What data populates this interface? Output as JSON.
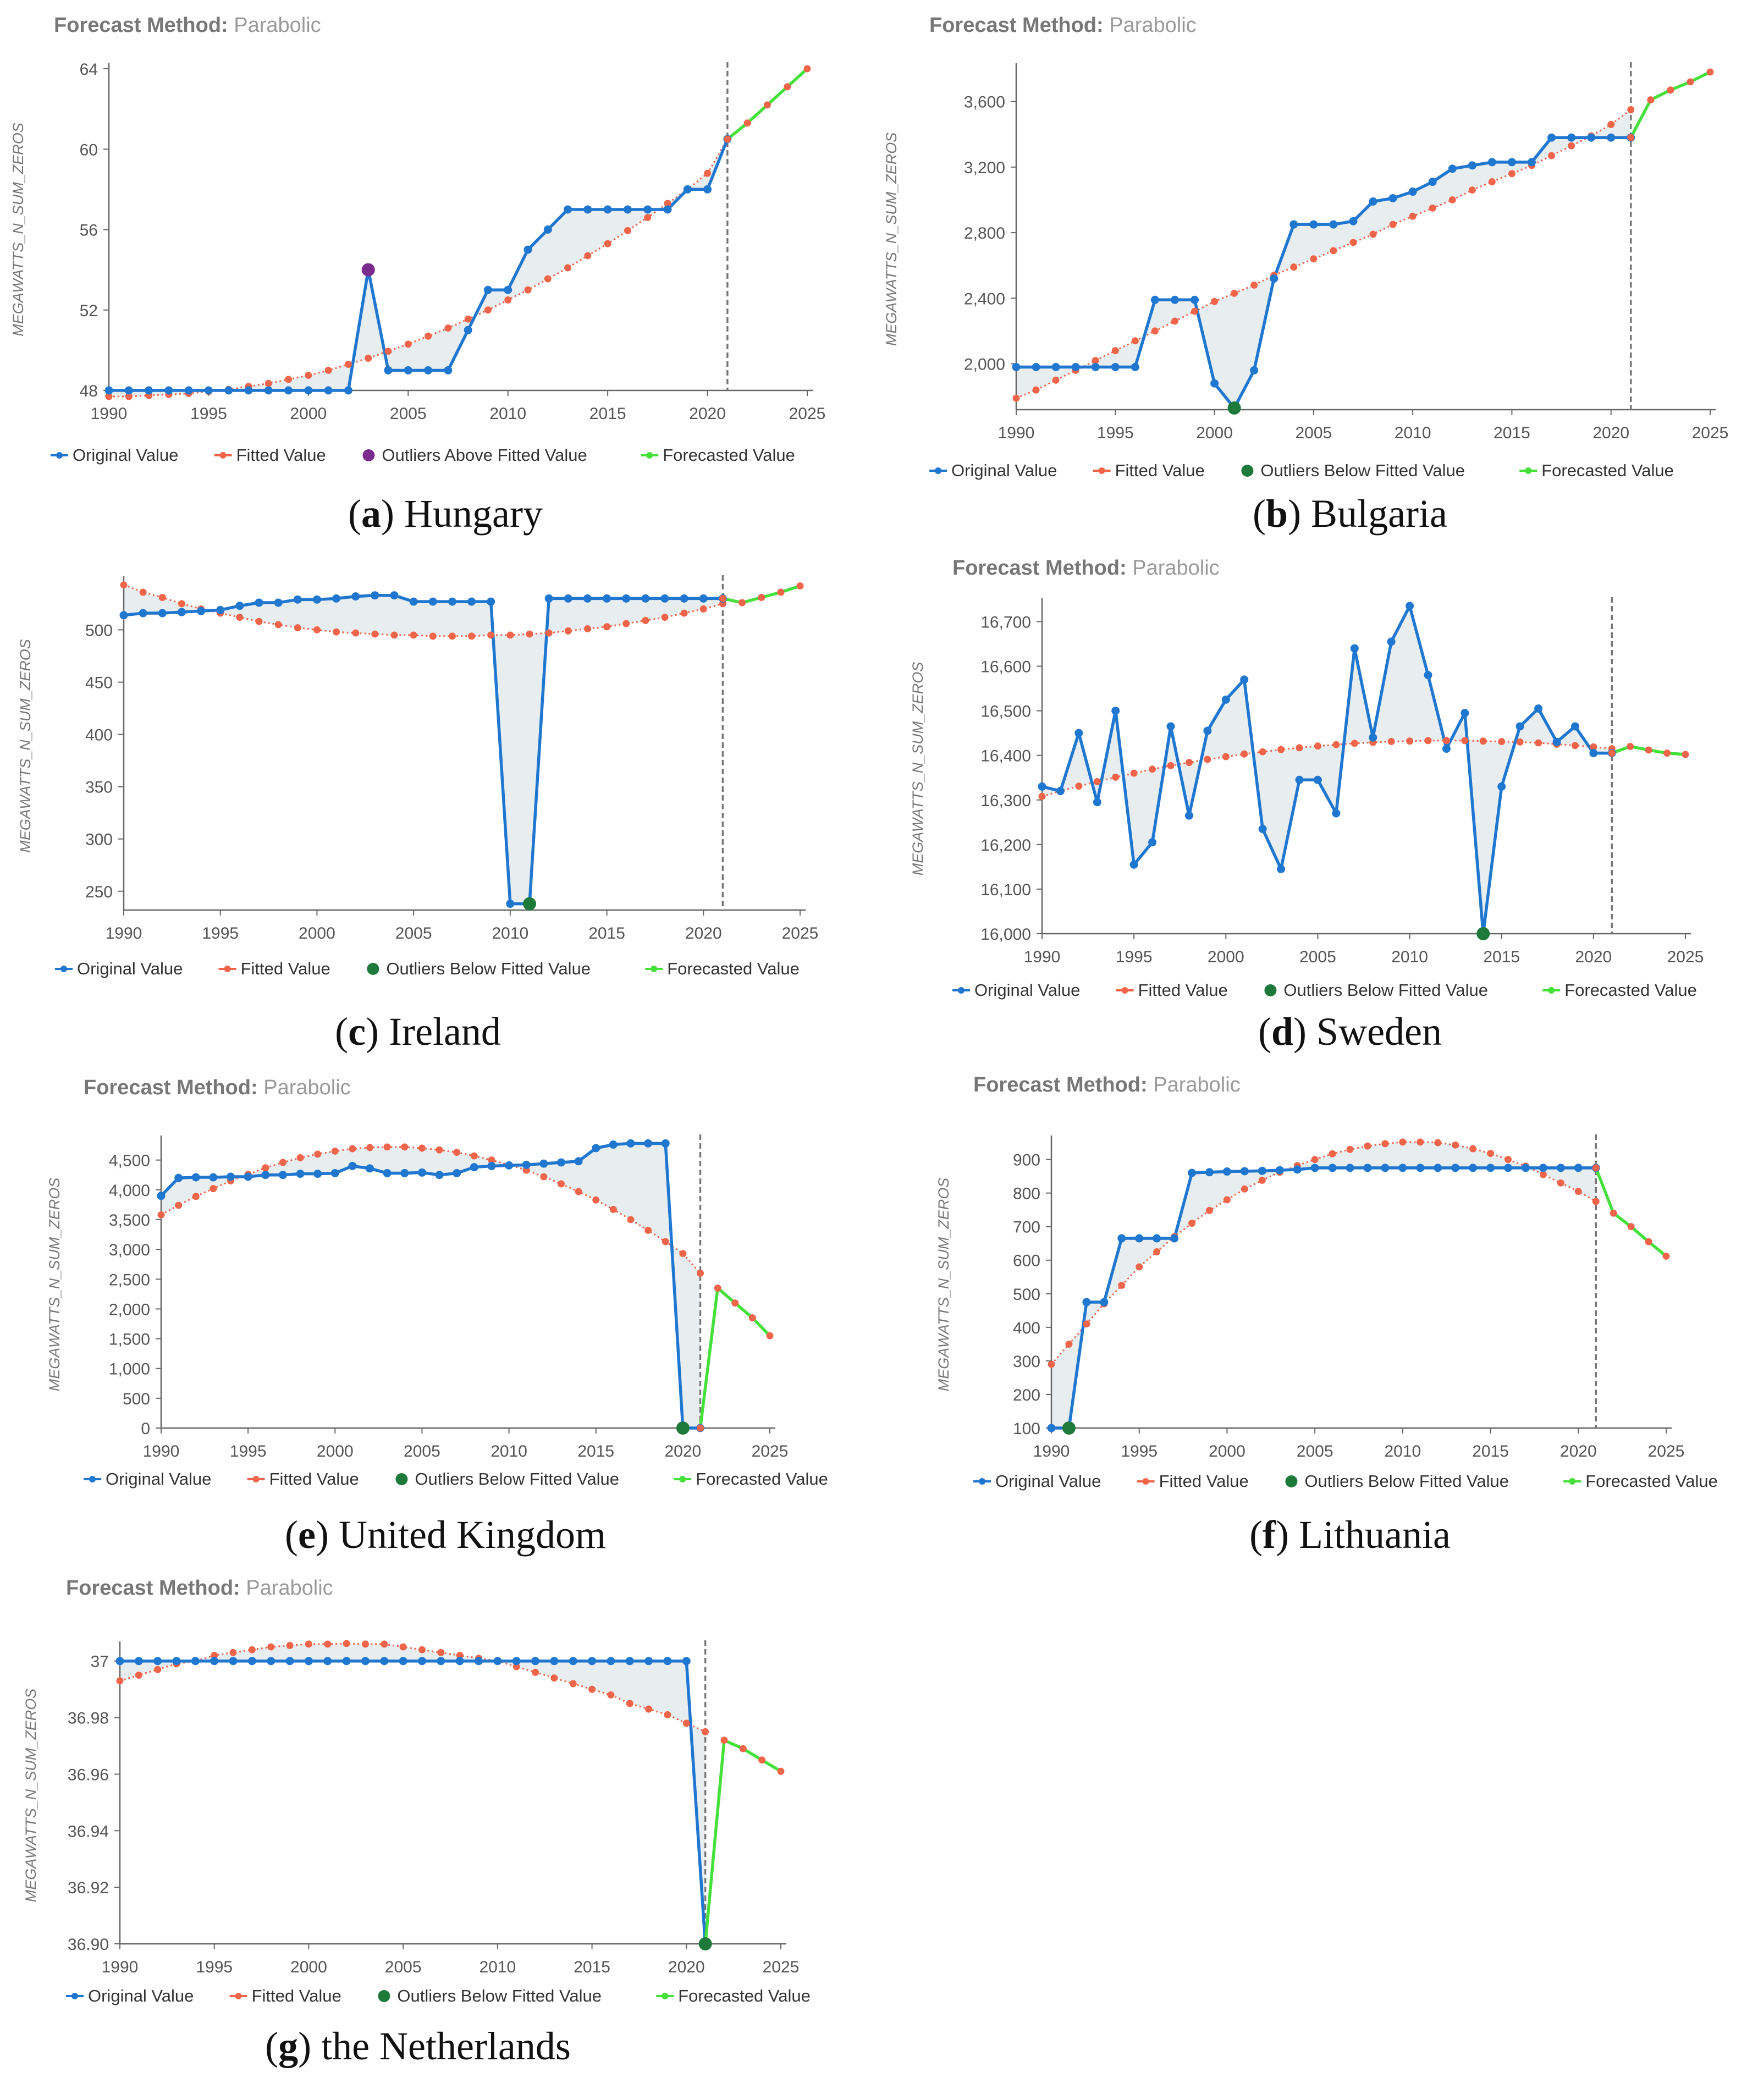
{
  "colors": {
    "original": "#1f77d0",
    "fitted": "#f0654a",
    "outlier_below": "#1e7a3a",
    "outlier_above": "#7b2a8e",
    "forecast": "#45e03a",
    "shade": "#e8edf0",
    "axis": "#444444",
    "tick_text": "#555555",
    "header_label": "#777777",
    "header_value": "#999999"
  },
  "chart_data": [
    {
      "id": "a",
      "type": "line",
      "header_label": "Forecast Method:",
      "header_value": "Parabolic",
      "caption_letter": "a",
      "caption_text": " Hungary",
      "ylabel": "MEGAWATTS_N_SUM_ZEROS",
      "xlim": [
        1990,
        2025
      ],
      "ylim": [
        48,
        64
      ],
      "xticks": [
        1990,
        1995,
        2000,
        2005,
        2010,
        2015,
        2020,
        2025
      ],
      "yticks": [
        48,
        52,
        56,
        60,
        64
      ],
      "yticklabels": [
        "48",
        "52",
        "56",
        "60",
        "64"
      ],
      "forecast_start": 2021,
      "x": [
        1990,
        1991,
        1992,
        1993,
        1994,
        1995,
        1996,
        1997,
        1998,
        1999,
        2000,
        2001,
        2002,
        2003,
        2004,
        2005,
        2006,
        2007,
        2008,
        2009,
        2010,
        2011,
        2012,
        2013,
        2014,
        2015,
        2016,
        2017,
        2018,
        2019,
        2020,
        2021
      ],
      "original": [
        48,
        48,
        48,
        48,
        48,
        48,
        48,
        48,
        48,
        48,
        48,
        48,
        48,
        54,
        49,
        49,
        49,
        49,
        51,
        53,
        53,
        55,
        56,
        57,
        57,
        57,
        57,
        57,
        57,
        58,
        58,
        60.5
      ],
      "fitted": [
        47.7,
        47.7,
        47.75,
        47.8,
        47.85,
        47.95,
        48.05,
        48.2,
        48.35,
        48.55,
        48.75,
        49,
        49.3,
        49.6,
        49.95,
        50.3,
        50.7,
        51.1,
        51.55,
        52,
        52.5,
        53,
        53.55,
        54.1,
        54.7,
        55.3,
        55.95,
        56.6,
        57.3,
        58,
        58.8,
        60.5
      ],
      "forecast_x": [
        2021,
        2022,
        2023,
        2024,
        2025
      ],
      "forecast": [
        60.5,
        61.3,
        62.2,
        63.1,
        64
      ],
      "outliers": [
        {
          "x": 2003,
          "y": 54
        }
      ],
      "outlier_type": "above",
      "legend": [
        "Original Value",
        "Fitted Value",
        "Outliers Above Fitted Value",
        "Forecasted Value"
      ]
    },
    {
      "id": "b",
      "type": "line",
      "header_label": "Forecast Method:",
      "header_value": "Parabolic",
      "caption_letter": "b",
      "caption_text": " Bulgaria",
      "ylabel": "MEGAWATTS_N_SUM_ZEROS",
      "xlim": [
        1990,
        2025
      ],
      "ylim": [
        1720,
        3800
      ],
      "xticks": [
        1990,
        1995,
        2000,
        2005,
        2010,
        2015,
        2020,
        2025
      ],
      "yticks": [
        2000,
        2400,
        2800,
        3200,
        3600
      ],
      "yticklabels": [
        "2,000",
        "2,400",
        "2,800",
        "3,200",
        "3,600"
      ],
      "forecast_start": 2021,
      "x": [
        1990,
        1991,
        1992,
        1993,
        1994,
        1995,
        1996,
        1997,
        1998,
        1999,
        2000,
        2001,
        2002,
        2003,
        2004,
        2005,
        2006,
        2007,
        2008,
        2009,
        2010,
        2011,
        2012,
        2013,
        2014,
        2015,
        2016,
        2017,
        2018,
        2019,
        2020,
        2021
      ],
      "original": [
        1980,
        1980,
        1980,
        1980,
        1980,
        1980,
        1980,
        2390,
        2390,
        2390,
        1880,
        1730,
        1960,
        2520,
        2850,
        2850,
        2850,
        2870,
        2990,
        3010,
        3050,
        3110,
        3190,
        3210,
        3230,
        3230,
        3230,
        3380,
        3380,
        3380,
        3380,
        3380
      ],
      "fitted": [
        1790,
        1840,
        1900,
        1960,
        2020,
        2080,
        2140,
        2200,
        2260,
        2320,
        2380,
        2430,
        2480,
        2540,
        2590,
        2640,
        2690,
        2740,
        2790,
        2850,
        2900,
        2950,
        3000,
        3060,
        3110,
        3160,
        3210,
        3270,
        3330,
        3390,
        3460,
        3550
      ],
      "forecast_x": [
        2021,
        2022,
        2023,
        2024,
        2025
      ],
      "forecast": [
        3380,
        3610,
        3670,
        3720,
        3780
      ],
      "outliers": [
        {
          "x": 2001,
          "y": 1730
        }
      ],
      "outlier_type": "below",
      "legend": [
        "Original Value",
        "Fitted Value",
        "Outliers Below Fitted Value",
        "Forecasted Value"
      ]
    },
    {
      "id": "c",
      "type": "line",
      "header_label": "",
      "header_value": "",
      "caption_letter": "c",
      "caption_text": " Ireland",
      "ylabel": "MEGAWATTS_N_SUM_ZEROS",
      "xlim": [
        1990,
        2025
      ],
      "ylim": [
        232,
        546
      ],
      "xticks": [
        1990,
        1995,
        2000,
        2005,
        2010,
        2015,
        2020,
        2025
      ],
      "yticks": [
        250,
        300,
        350,
        400,
        450,
        500
      ],
      "yticklabels": [
        "250",
        "300",
        "350",
        "400",
        "450",
        "500"
      ],
      "forecast_start": 2021,
      "x": [
        1990,
        1991,
        1992,
        1993,
        1994,
        1995,
        1996,
        1997,
        1998,
        1999,
        2000,
        2001,
        2002,
        2003,
        2004,
        2005,
        2006,
        2007,
        2008,
        2009,
        2010,
        2011,
        2012,
        2013,
        2014,
        2015,
        2016,
        2017,
        2018,
        2019,
        2020,
        2021
      ],
      "original": [
        514,
        516,
        516,
        517,
        518,
        519,
        523,
        526,
        526,
        529,
        529,
        530,
        532,
        533,
        533,
        527,
        527,
        527,
        527,
        527,
        238,
        238,
        530,
        530,
        530,
        530,
        530,
        530,
        530,
        530,
        530,
        530
      ],
      "fitted": [
        543,
        536,
        531,
        525,
        520,
        516,
        512,
        508,
        505,
        502,
        500,
        498,
        497,
        496,
        495,
        495,
        494,
        494,
        494,
        495,
        495,
        496,
        497,
        499,
        501,
        503,
        506,
        509,
        512,
        516,
        520,
        525
      ],
      "forecast_x": [
        2021,
        2022,
        2023,
        2024,
        2025
      ],
      "forecast": [
        530,
        526,
        531,
        536,
        542
      ],
      "outliers": [
        {
          "x": 2011,
          "y": 238
        }
      ],
      "outlier_type": "below",
      "legend": [
        "Original Value",
        "Fitted Value",
        "Outliers Below Fitted Value",
        "Forecasted Value"
      ]
    },
    {
      "id": "d",
      "type": "line",
      "header_label": "Forecast Method:",
      "header_value": "Parabolic",
      "caption_letter": "d",
      "caption_text": " Sweden",
      "ylabel": "MEGAWATTS_N_SUM_ZEROS",
      "xlim": [
        1990,
        2025
      ],
      "ylim": [
        16000,
        16740
      ],
      "xticks": [
        1990,
        1995,
        2000,
        2005,
        2010,
        2015,
        2020,
        2025
      ],
      "yticks": [
        16000,
        16100,
        16200,
        16300,
        16400,
        16500,
        16600,
        16700
      ],
      "yticklabels": [
        "16,000",
        "16,100",
        "16,200",
        "16,300",
        "16,400",
        "16,500",
        "16,600",
        "16,700"
      ],
      "forecast_start": 2021,
      "x": [
        1990,
        1991,
        1992,
        1993,
        1994,
        1995,
        1996,
        1997,
        1998,
        1999,
        2000,
        2001,
        2002,
        2003,
        2004,
        2005,
        2006,
        2007,
        2008,
        2009,
        2010,
        2011,
        2012,
        2013,
        2014,
        2015,
        2016,
        2017,
        2018,
        2019,
        2020,
        2021
      ],
      "original": [
        16330,
        16320,
        16450,
        16295,
        16500,
        16155,
        16205,
        16465,
        16265,
        16455,
        16525,
        16570,
        16235,
        16145,
        16345,
        16345,
        16270,
        16640,
        16440,
        16655,
        16735,
        16580,
        16415,
        16495,
        16000,
        16330,
        16465,
        16505,
        16430,
        16465,
        16405,
        16405
      ],
      "fitted": [
        16308,
        16320,
        16331,
        16341,
        16351,
        16360,
        16369,
        16377,
        16384,
        16391,
        16397,
        16403,
        16408,
        16413,
        16417,
        16421,
        16424,
        16427,
        16429,
        16431,
        16432,
        16433,
        16433,
        16433,
        16432,
        16431,
        16430,
        16428,
        16425,
        16422,
        16419,
        16415
      ],
      "forecast_x": [
        2021,
        2022,
        2023,
        2024,
        2025
      ],
      "forecast": [
        16405,
        16420,
        16412,
        16405,
        16402
      ],
      "outliers": [
        {
          "x": 2014,
          "y": 16000
        }
      ],
      "outlier_type": "below",
      "legend": [
        "Original Value",
        "Fitted Value",
        "Outliers Below Fitted Value",
        "Forecasted Value"
      ]
    },
    {
      "id": "e",
      "type": "line",
      "header_label": "Forecast Method:",
      "header_value": "Parabolic",
      "caption_letter": "e",
      "caption_text": " United Kingdom",
      "ylabel": "MEGAWATTS_N_SUM_ZEROS",
      "xlim": [
        1990,
        2025
      ],
      "ylim": [
        0,
        4820
      ],
      "xticks": [
        1990,
        1995,
        2000,
        2005,
        2010,
        2015,
        2020,
        2025
      ],
      "yticks": [
        0,
        500,
        1000,
        1500,
        2000,
        2500,
        3000,
        3500,
        4000,
        4500
      ],
      "yticklabels": [
        "0",
        "500",
        "1,000",
        "1,500",
        "2,000",
        "2,500",
        "3,000",
        "3,500",
        "4,000",
        "4,500"
      ],
      "forecast_start": 2021,
      "x": [
        1990,
        1991,
        1992,
        1993,
        1994,
        1995,
        1996,
        1997,
        1998,
        1999,
        2000,
        2001,
        2002,
        2003,
        2004,
        2005,
        2006,
        2007,
        2008,
        2009,
        2010,
        2011,
        2012,
        2013,
        2014,
        2015,
        2016,
        2017,
        2018,
        2019,
        2020,
        2021
      ],
      "original": [
        3900,
        4200,
        4210,
        4210,
        4220,
        4220,
        4250,
        4250,
        4270,
        4270,
        4280,
        4400,
        4360,
        4280,
        4280,
        4290,
        4250,
        4280,
        4380,
        4400,
        4410,
        4420,
        4440,
        4460,
        4480,
        4700,
        4760,
        4780,
        4780,
        4780,
        0,
        0
      ],
      "fitted": [
        3580,
        3740,
        3890,
        4020,
        4150,
        4260,
        4370,
        4460,
        4540,
        4600,
        4650,
        4690,
        4710,
        4720,
        4720,
        4700,
        4670,
        4630,
        4570,
        4500,
        4420,
        4330,
        4220,
        4100,
        3970,
        3830,
        3670,
        3500,
        3320,
        3130,
        2930,
        2600
      ],
      "forecast_x": [
        2021,
        2022,
        2023,
        2024,
        2025
      ],
      "forecast": [
        0,
        2350,
        2100,
        1850,
        1550
      ],
      "outliers": [
        {
          "x": 2020,
          "y": 0
        }
      ],
      "outlier_type": "below",
      "legend": [
        "Original Value",
        "Fitted Value",
        "Outliers Below Fitted Value",
        "Forecasted Value"
      ]
    },
    {
      "id": "f",
      "type": "line",
      "header_label": "Forecast Method:",
      "header_value": "Parabolic",
      "caption_letter": "f",
      "caption_text": " Lithuania",
      "ylabel": "MEGAWATTS_N_SUM_ZEROS",
      "xlim": [
        1990,
        2025
      ],
      "ylim": [
        100,
        955
      ],
      "xticks": [
        1990,
        1995,
        2000,
        2005,
        2010,
        2015,
        2020,
        2025
      ],
      "yticks": [
        100,
        200,
        300,
        400,
        500,
        600,
        700,
        800,
        900
      ],
      "yticklabels": [
        "100",
        "200",
        "300",
        "400",
        "500",
        "600",
        "700",
        "800",
        "900"
      ],
      "forecast_start": 2021,
      "x": [
        1990,
        1991,
        1992,
        1993,
        1994,
        1995,
        1996,
        1997,
        1998,
        1999,
        2000,
        2001,
        2002,
        2003,
        2004,
        2005,
        2006,
        2007,
        2008,
        2009,
        2010,
        2011,
        2012,
        2013,
        2014,
        2015,
        2016,
        2017,
        2018,
        2019,
        2020,
        2021
      ],
      "original": [
        100,
        100,
        475,
        475,
        665,
        665,
        665,
        665,
        860,
        862,
        864,
        865,
        866,
        868,
        870,
        875,
        875,
        875,
        875,
        875,
        875,
        875,
        875,
        875,
        875,
        875,
        875,
        875,
        875,
        875,
        875,
        875
      ],
      "fitted": [
        290,
        350,
        410,
        470,
        525,
        580,
        625,
        670,
        710,
        748,
        780,
        812,
        838,
        862,
        882,
        900,
        917,
        930,
        940,
        947,
        952,
        952,
        950,
        943,
        932,
        918,
        900,
        880,
        855,
        830,
        805,
        775
      ],
      "forecast_x": [
        2021,
        2022,
        2023,
        2024,
        2025
      ],
      "forecast": [
        875,
        740,
        700,
        655,
        612
      ],
      "outliers": [
        {
          "x": 1991,
          "y": 100
        }
      ],
      "outlier_type": "below",
      "legend": [
        "Original Value",
        "Fitted Value",
        "Outliers Below Fitted Value",
        "Forecasted Value"
      ]
    },
    {
      "id": "g",
      "type": "line",
      "header_label": "Forecast Method:",
      "header_value": "Parabolic",
      "caption_letter": "g",
      "caption_text": " the Netherlands",
      "ylabel": "MEGAWATTS_N_SUM_ZEROS",
      "xlim": [
        1990,
        2025
      ],
      "ylim": [
        36.9,
        37.005
      ],
      "xticks": [
        1990,
        1995,
        2000,
        2005,
        2010,
        2015,
        2020,
        2025
      ],
      "yticks": [
        36.9,
        36.92,
        36.94,
        36.96,
        36.98,
        37.0
      ],
      "yticklabels": [
        "36.90",
        "36.92",
        "36.94",
        "36.96",
        "36.98",
        "37"
      ],
      "forecast_start": 2021,
      "x": [
        1990,
        1991,
        1992,
        1993,
        1994,
        1995,
        1996,
        1997,
        1998,
        1999,
        2000,
        2001,
        2002,
        2003,
        2004,
        2005,
        2006,
        2007,
        2008,
        2009,
        2010,
        2011,
        2012,
        2013,
        2014,
        2015,
        2016,
        2017,
        2018,
        2019,
        2020,
        2021
      ],
      "original": [
        37,
        37,
        37,
        37,
        37,
        37,
        37,
        37,
        37,
        37,
        37,
        37,
        37,
        37,
        37,
        37,
        37,
        37,
        37,
        37,
        37,
        37,
        37,
        37,
        37,
        37,
        37,
        37,
        37,
        37,
        37,
        36.9
      ],
      "fitted": [
        36.993,
        36.995,
        36.997,
        36.999,
        37.0,
        37.002,
        37.003,
        37.004,
        37.005,
        37.0055,
        37.006,
        37.006,
        37.0062,
        37.006,
        37.006,
        37.005,
        37.004,
        37.003,
        37.002,
        37.001,
        37.0,
        36.998,
        36.996,
        36.994,
        36.992,
        36.99,
        36.988,
        36.985,
        36.983,
        36.981,
        36.978,
        36.975
      ],
      "forecast_x": [
        2021,
        2022,
        2023,
        2024,
        2025
      ],
      "forecast": [
        36.9,
        36.972,
        36.969,
        36.965,
        36.961
      ],
      "outliers": [
        {
          "x": 2021,
          "y": 36.9
        }
      ],
      "outlier_type": "below",
      "legend": [
        "Original Value",
        "Fitted Value",
        "Outliers Below Fitted Value",
        "Forecasted Value"
      ]
    }
  ]
}
